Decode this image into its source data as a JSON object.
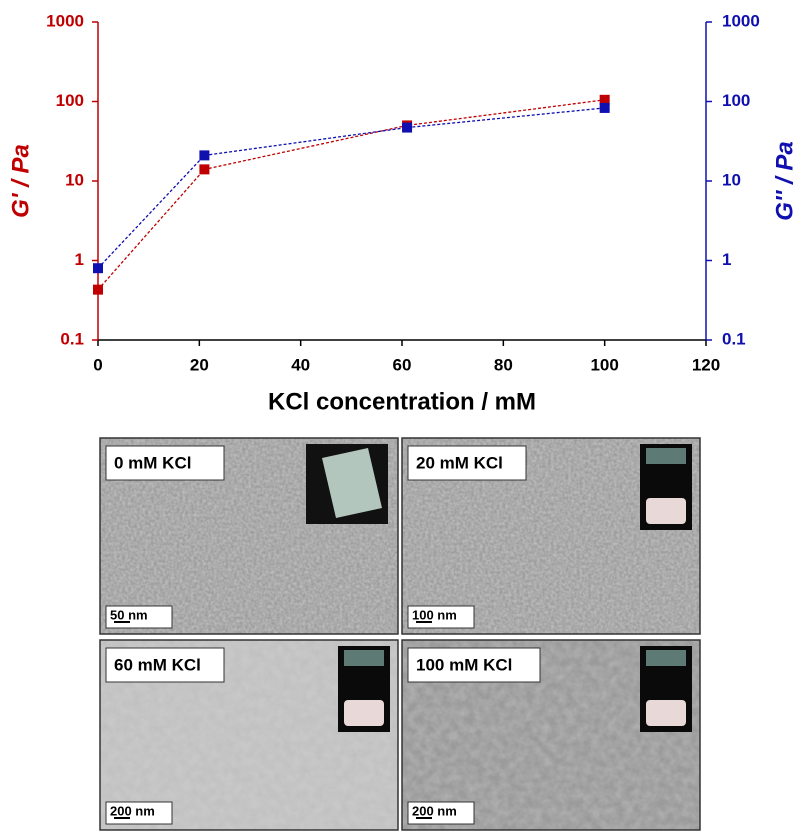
{
  "chart_data": {
    "type": "line",
    "xlabel": "KCl concentration / mM",
    "ylabel": "G' / Pa",
    "y2label": "G'' / Pa",
    "x": [
      0,
      21,
      61,
      100
    ],
    "series": [
      {
        "color": "#c00000",
        "values": [
          0.43,
          14,
          50,
          105
        ]
      },
      {
        "color": "#1010b0",
        "axis": "y2",
        "values": [
          0.8,
          21,
          47,
          83
        ]
      }
    ],
    "xlim": [
      0,
      120
    ],
    "xticks": [
      0,
      20,
      40,
      60,
      80,
      100,
      120
    ],
    "ylim": [
      0.1,
      1000
    ],
    "yticks": [
      0.1,
      1,
      10,
      100,
      1000
    ],
    "y2lim": [
      0.1,
      1000
    ],
    "y2ticks": [
      0.1,
      1,
      10,
      100,
      1000
    ],
    "log_y": true,
    "grid": false
  },
  "panels": [
    {
      "label": "0 mM KCl",
      "scale": "50 nm"
    },
    {
      "label": "20 mM KCl",
      "scale": "100 nm"
    },
    {
      "label": "60 mM KCl",
      "scale": "200 nm"
    },
    {
      "label": "100 mM KCl",
      "scale": "200 nm"
    }
  ]
}
